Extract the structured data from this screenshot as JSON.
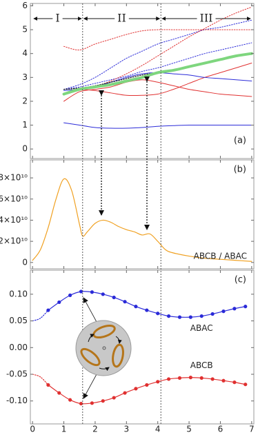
{
  "chart_data": [
    {
      "type": "line",
      "panel_label": "(a)",
      "xlim": [
        -0.07,
        7.07
      ],
      "ylim": [
        -0.4,
        6.1
      ],
      "yticks": [
        0,
        1,
        2,
        3,
        4,
        5,
        6
      ],
      "regions": [
        {
          "label": "I",
          "from": 0,
          "to": 1.6
        },
        {
          "label": "II",
          "from": 1.6,
          "to": 4.1
        },
        {
          "label": "III",
          "from": 4.1,
          "to": 7
        }
      ],
      "x": [
        1,
        1.5,
        2,
        2.5,
        3,
        3.5,
        4,
        4.5,
        5,
        5.5,
        6,
        6.5,
        7
      ],
      "series": [
        {
          "color": "#2a2ad8",
          "dash": "solid",
          "width": 1,
          "values": [
            1.1,
            1.0,
            0.9,
            0.87,
            0.87,
            0.9,
            0.95,
            0.98,
            1.0,
            1.0,
            1.0,
            1.0,
            1.0
          ]
        },
        {
          "color": "#2a2ad8",
          "dash": "dotted",
          "width": 1,
          "values": [
            2.5,
            2.7,
            3.0,
            3.4,
            3.8,
            4.1,
            4.4,
            4.6,
            4.8,
            5.0,
            5.1,
            5.25,
            5.4
          ]
        },
        {
          "color": "#2a2ad8",
          "dash": "dotted",
          "width": 1,
          "values": [
            2.5,
            2.6,
            2.75,
            2.9,
            3.05,
            3.25,
            3.4,
            3.6,
            3.8,
            4.0,
            4.15,
            4.3,
            4.45
          ]
        },
        {
          "color": "#e03030",
          "dash": "dotted",
          "width": 1,
          "values": [
            4.3,
            4.15,
            4.4,
            4.6,
            4.8,
            4.95,
            5.0,
            5.0,
            5.0,
            5.0,
            5.0,
            5.0,
            5.0
          ]
        },
        {
          "color": "#e03030",
          "dash": "dotted",
          "width": 1,
          "values": [
            null,
            null,
            2.6,
            2.85,
            3.15,
            3.5,
            3.9,
            4.3,
            4.7,
            5.05,
            5.4,
            5.7,
            5.95
          ]
        },
        {
          "color": "#e03030",
          "dash": "solid",
          "width": 1,
          "values": [
            2.0,
            2.4,
            2.5,
            2.6,
            2.8,
            2.9,
            2.8,
            2.65,
            2.5,
            2.4,
            2.3,
            2.25,
            2.2
          ]
        },
        {
          "color": "#e03030",
          "dash": "solid",
          "width": 1,
          "values": [
            null,
            2.5,
            2.45,
            2.35,
            2.25,
            2.25,
            2.3,
            2.5,
            2.75,
            3.0,
            3.2,
            3.4,
            3.6
          ]
        },
        {
          "color": "#2a2ad8",
          "dash": "solid",
          "width": 1,
          "values": [
            2.45,
            2.5,
            2.6,
            2.8,
            3.0,
            3.15,
            3.2,
            3.15,
            3.1,
            3.0,
            2.95,
            2.9,
            2.85
          ]
        },
        {
          "color": "#222222",
          "dash": "dotted",
          "width": 1.3,
          "values": [
            2.5,
            2.55,
            2.65,
            2.8,
            2.95,
            3.1,
            3.2,
            null,
            null,
            null,
            null,
            null,
            null
          ]
        },
        {
          "color": "#7ed67e",
          "dash": "solid",
          "width": 4,
          "values": [
            2.3,
            2.5,
            2.6,
            2.7,
            2.85,
            3.0,
            3.2,
            3.3,
            3.45,
            3.6,
            3.75,
            3.9,
            4.0
          ]
        }
      ]
    },
    {
      "type": "line",
      "panel_label": "(b)",
      "annotation": "ABCB / ABAC",
      "xlim": [
        -0.07,
        7.07
      ],
      "ylim": [
        -6000000000,
        97000000000
      ],
      "yticks": [
        0,
        {
          "value": 20000000000,
          "label": "2×10¹⁰"
        },
        {
          "value": 40000000000,
          "label": "4×10¹⁰"
        },
        {
          "value": 60000000000,
          "label": "6×10¹⁰"
        },
        {
          "value": 80000000000,
          "label": "8×10¹⁰"
        }
      ],
      "x": [
        0,
        0.25,
        0.5,
        0.75,
        1,
        1.25,
        1.5,
        1.6,
        1.75,
        2,
        2.25,
        2.5,
        2.75,
        3,
        3.25,
        3.5,
        3.75,
        4,
        4.25,
        4.5,
        5,
        5.5,
        6,
        6.5,
        7
      ],
      "series": [
        {
          "color": "#f0a020",
          "dash": "solid",
          "width": 1.2,
          "values": [
            2000000000,
            12000000000,
            33000000000,
            60000000000,
            79000000000,
            68000000000,
            36000000000,
            25000000000,
            29000000000,
            37000000000,
            40000000000,
            38000000000,
            34000000000,
            31000000000,
            29000000000,
            26000000000,
            27000000000,
            20000000000,
            12000000000,
            9000000000,
            6000000000,
            4000000000,
            3000000000,
            2000000000,
            1000000000
          ]
        }
      ]
    },
    {
      "type": "line",
      "panel_label": "(c)",
      "xlim": [
        -0.07,
        7.07
      ],
      "ylim": [
        -0.143,
        0.145
      ],
      "xticks": [
        0,
        1,
        2,
        3,
        4,
        5,
        6,
        7
      ],
      "yticks": [
        {
          "value": -0.1,
          "label": "-0.10"
        },
        {
          "value": -0.05,
          "label": "-0.05"
        },
        {
          "value": 0,
          "label": "0.00"
        },
        {
          "value": 0.05,
          "label": "0.05"
        },
        {
          "value": 0.1,
          "label": "0.10"
        }
      ],
      "x": [
        0.5,
        0.85,
        1.2,
        1.55,
        1.9,
        2.25,
        2.6,
        2.95,
        3.3,
        3.65,
        4.0,
        4.35,
        4.7,
        5.05,
        5.4,
        5.75,
        6.1,
        6.45,
        6.8
      ],
      "series": [
        {
          "name": "ABAC",
          "color": "#2a2ad8",
          "dash": "solid",
          "width": 1.2,
          "markers": true,
          "values": [
            0.07,
            0.085,
            0.098,
            0.105,
            0.104,
            0.1,
            0.094,
            0.086,
            0.077,
            0.07,
            0.064,
            0.059,
            0.057,
            0.057,
            0.059,
            0.063,
            0.068,
            0.073,
            0.077
          ]
        },
        {
          "name": "ABCB",
          "color": "#e03030",
          "dash": "solid",
          "width": 1.2,
          "markers": true,
          "values": [
            -0.07,
            -0.085,
            -0.098,
            -0.105,
            -0.104,
            -0.1,
            -0.094,
            -0.085,
            -0.077,
            -0.07,
            -0.064,
            -0.059,
            -0.057,
            -0.056,
            -0.057,
            -0.059,
            -0.062,
            -0.065,
            -0.069
          ]
        },
        {
          "color": "#2a2ad8",
          "dash": "dotted",
          "width": 1.2,
          "x": [
            0,
            0.25,
            0.5
          ],
          "values": [
            0.05,
            0.055,
            0.07
          ]
        },
        {
          "color": "#e03030",
          "dash": "dotted",
          "width": 1.2,
          "x": [
            0,
            0.25,
            0.5
          ],
          "values": [
            -0.05,
            -0.055,
            -0.07
          ]
        }
      ]
    }
  ]
}
